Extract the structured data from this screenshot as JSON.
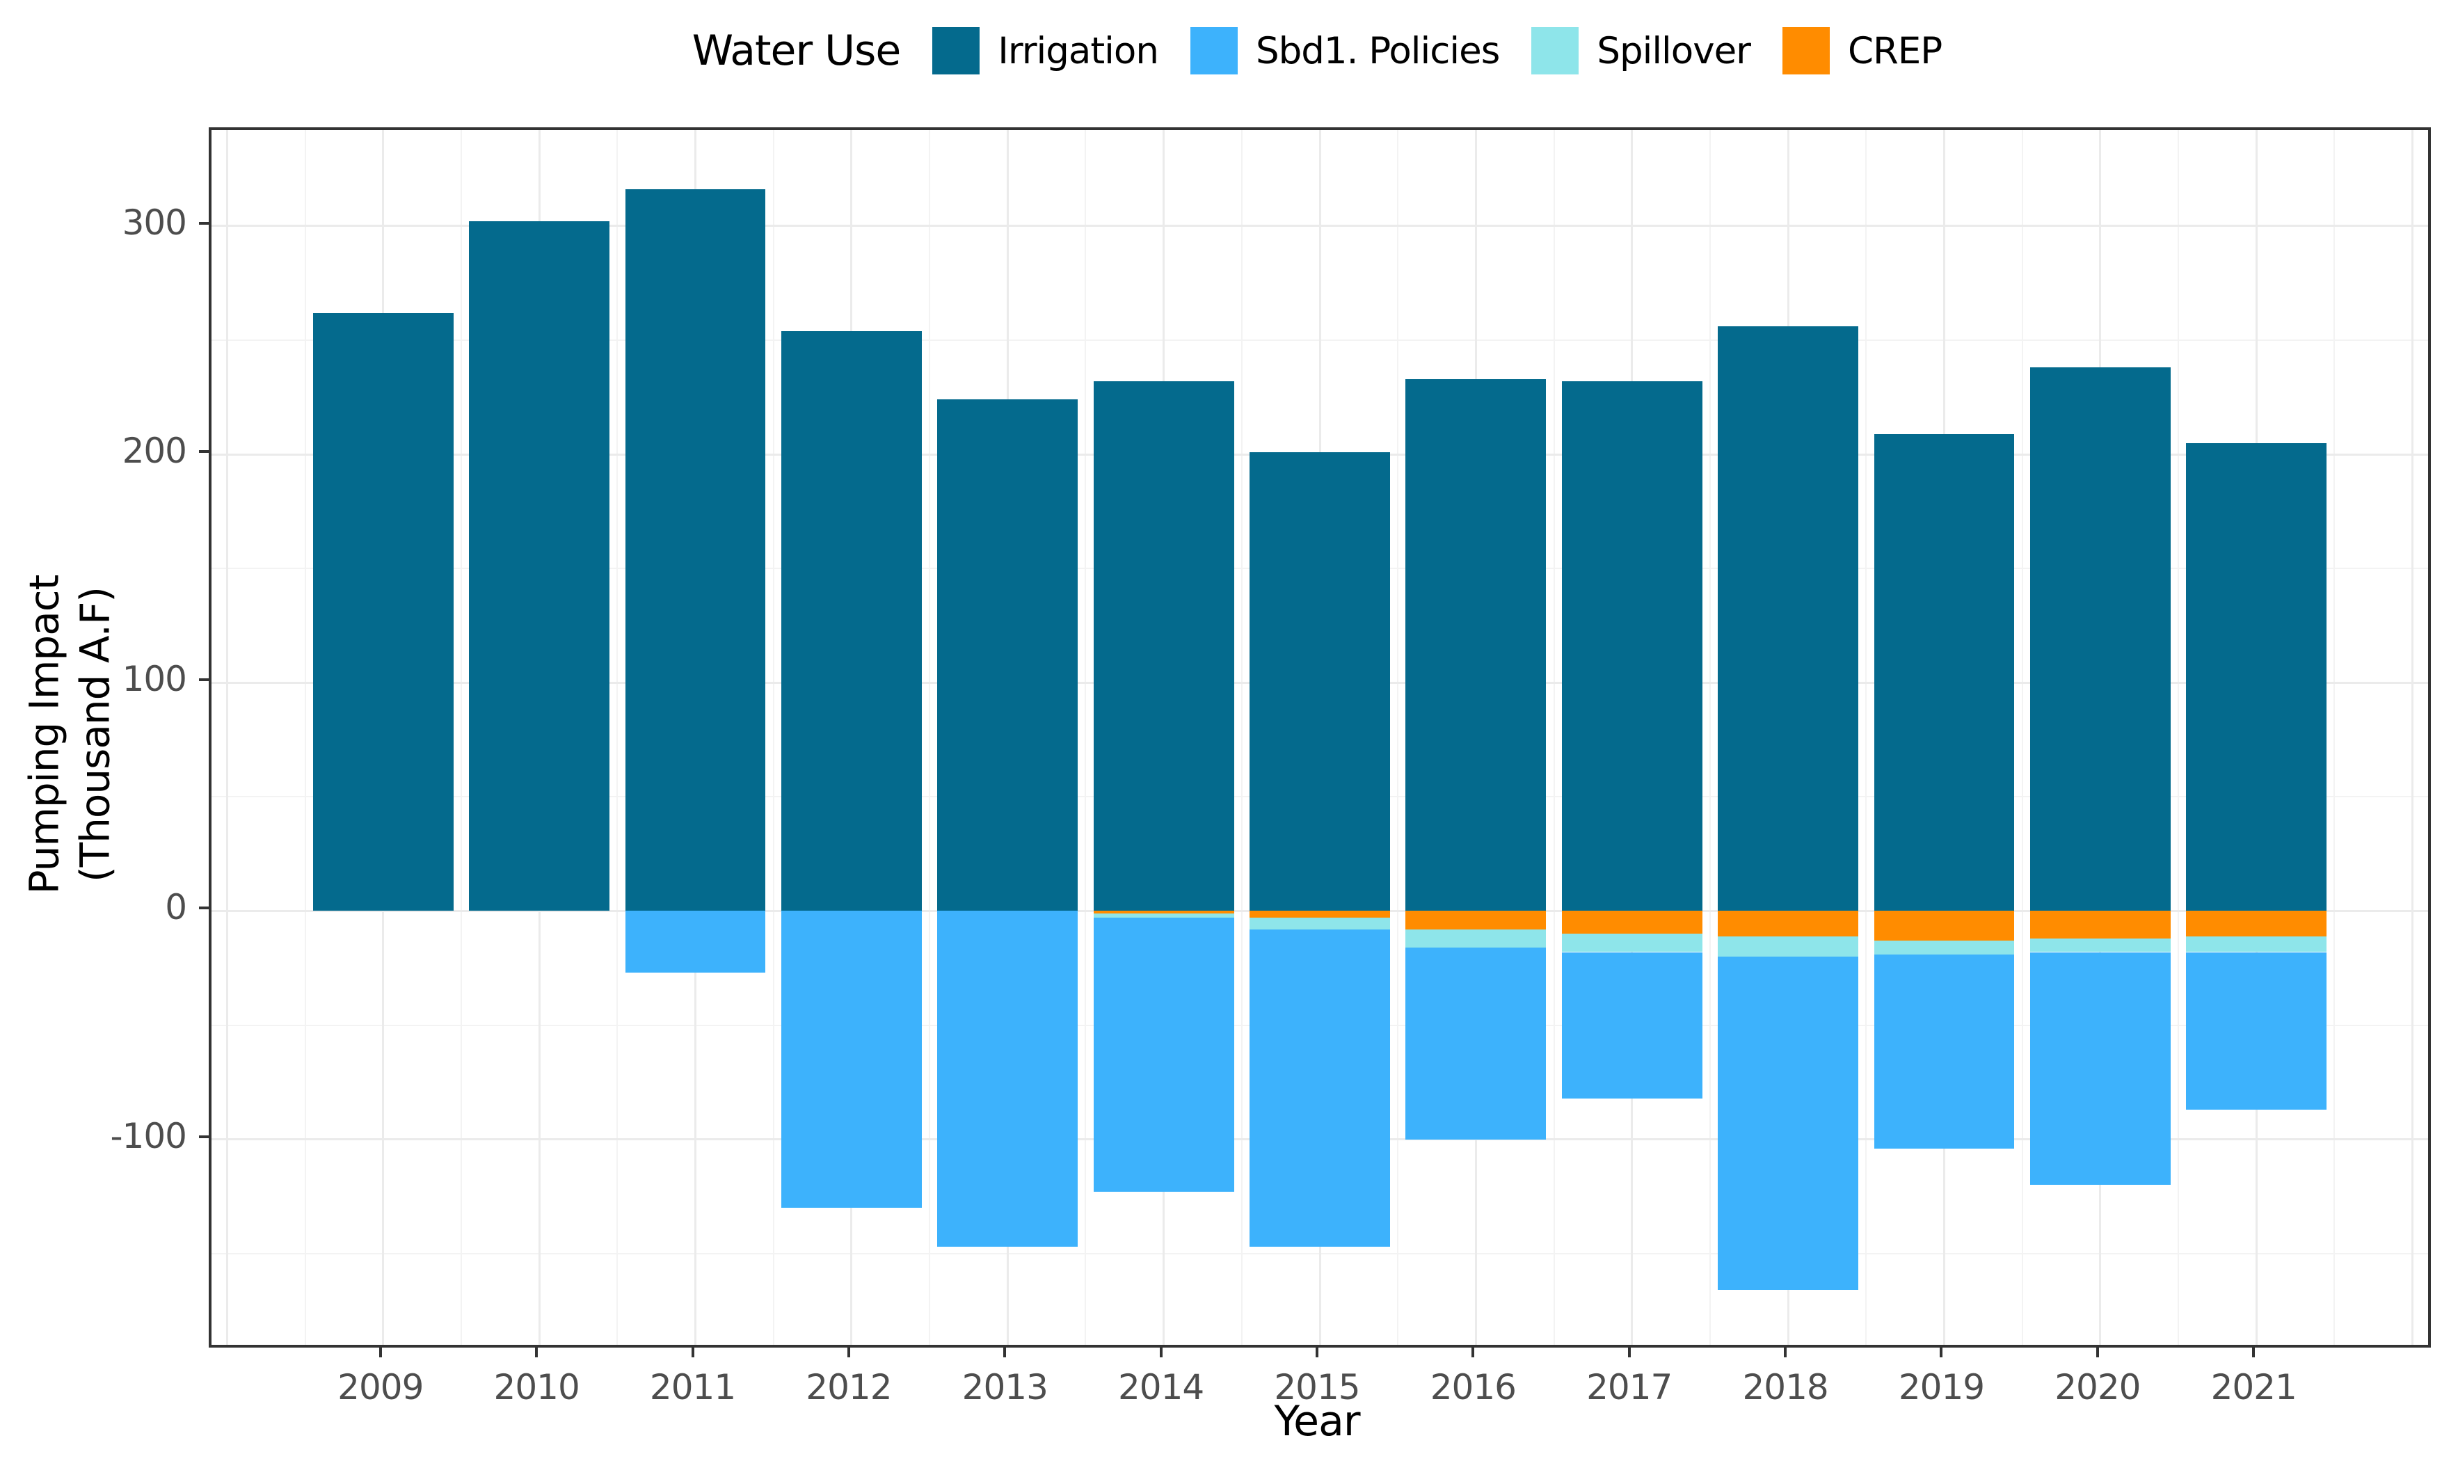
{
  "figure_name": "pumping-impact-stacked-bar-chart",
  "chart_data": {
    "type": "bar",
    "stacked": true,
    "legend": {
      "title": "Water Use",
      "position": "top",
      "order": [
        "Irrigation",
        "Sbd1. Policies",
        "Spillover",
        "CREP"
      ]
    },
    "categories": [
      "2009",
      "2010",
      "2011",
      "2012",
      "2013",
      "2014",
      "2015",
      "2016",
      "2017",
      "2018",
      "2019",
      "2020",
      "2021"
    ],
    "series": [
      {
        "name": "Irrigation",
        "color": "#046A8D",
        "values": [
          262,
          302,
          316,
          254,
          224,
          232,
          201,
          233,
          232,
          256,
          209,
          238,
          205
        ]
      },
      {
        "name": "CREP",
        "color": "#FF8C00",
        "values": [
          0,
          0,
          0,
          0,
          0,
          -1,
          -3,
          -8,
          -10,
          -11,
          -13,
          -12,
          -11
        ]
      },
      {
        "name": "Spillover",
        "color": "#8EE5EA",
        "values": [
          0,
          0,
          0,
          0,
          0,
          -2,
          -5,
          -8,
          -8,
          -9,
          -6,
          -6,
          -7
        ]
      },
      {
        "name": "Sbd1. Policies",
        "color": "#3DB2FC",
        "values": [
          0,
          0,
          -27,
          -130,
          -147,
          -120,
          -139,
          -84,
          -64,
          -146,
          -85,
          -102,
          -69
        ]
      }
    ],
    "xlabel": "Year",
    "ylabel": "Pumping Impact (Thousand A.F)",
    "ylabel_lines": [
      "Pumping Impact",
      "(Thousand A.F)"
    ],
    "y_ticks": [
      300,
      200,
      100,
      0,
      -100
    ],
    "y_minor_step": 50,
    "ylim": [
      -190,
      342
    ],
    "x_tick_years": [
      2009,
      2010,
      2011,
      2012,
      2013,
      2014,
      2015,
      2016,
      2017,
      2018,
      2019,
      2020,
      2021
    ],
    "x_major_years": [
      2008,
      2009,
      2010,
      2011,
      2012,
      2013,
      2014,
      2015,
      2016,
      2017,
      2018,
      2019,
      2020,
      2021,
      2022
    ],
    "x_minor_step": 0.5,
    "xlim": [
      2007.9,
      2022.1
    ],
    "bar_width_frac": 0.9,
    "grid": true,
    "panel_border": true,
    "colors": {
      "grid_major": "#ebebeb",
      "grid_minor": "#f3f3f3",
      "axis_line": "#333333",
      "tick_text": "#4d4d4d",
      "title_text": "#000000"
    }
  }
}
